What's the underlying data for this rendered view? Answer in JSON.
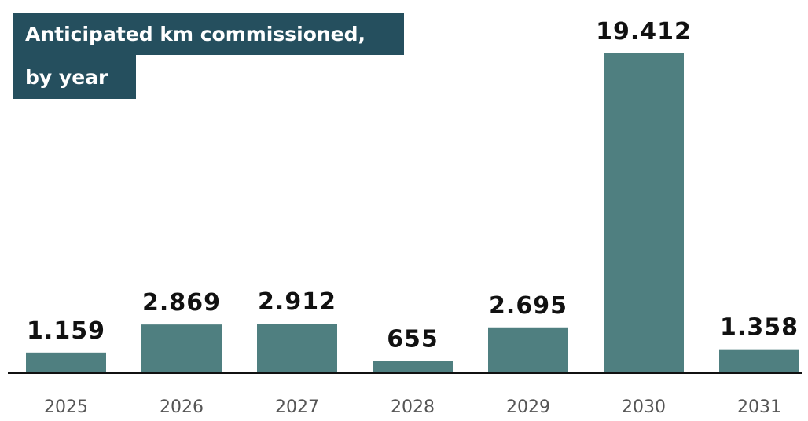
{
  "chart_data": {
    "type": "bar",
    "title": "Anticipated km commissioned,",
    "subtitle": "by year",
    "xlabel": "",
    "ylabel": "",
    "categories": [
      "2025",
      "2026",
      "2027",
      "2028",
      "2029",
      "2030",
      "2031"
    ],
    "values": [
      1159,
      2869,
      2912,
      655,
      2695,
      19412,
      1358
    ],
    "value_labels": [
      "1.159",
      "2.869",
      "2.912",
      "655",
      "2.695",
      "19.412",
      "1.358"
    ],
    "ylim": [
      0,
      19412
    ],
    "grid": false,
    "legend": "none",
    "colors": {
      "bar": "#4f7f80",
      "title_background": "#254f5e",
      "title_text": "#ffffff",
      "axis": "#111111",
      "value_text": "#111111",
      "category_text": "#555555"
    }
  }
}
